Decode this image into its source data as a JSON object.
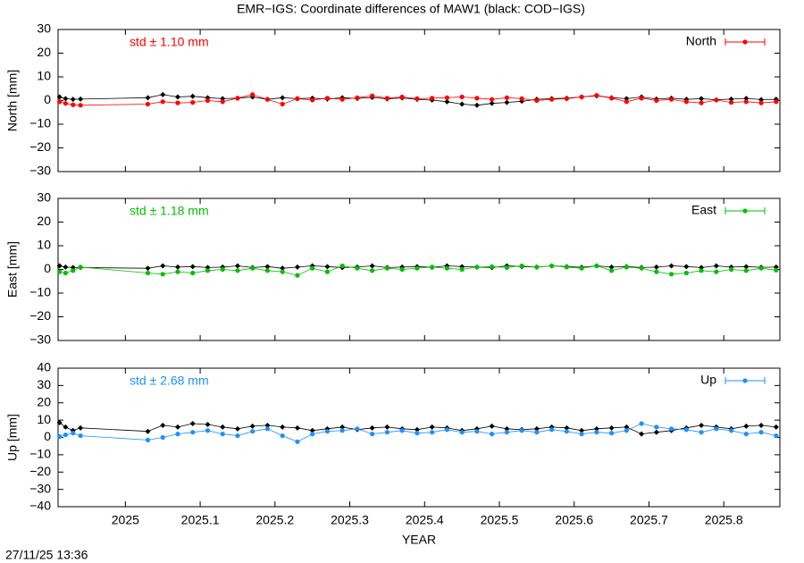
{
  "title": "EMR−IGS: Coordinate differences of MAW1 (black: COD−IGS)",
  "footer": "27/11/25 13:36",
  "chart_data": [
    {
      "type": "line",
      "ylabel": "North [mm]",
      "annotation": "std ± 1.10 mm",
      "x": [
        2024.912,
        2024.92,
        2024.93,
        2024.94,
        2025.03,
        2025.05,
        2025.07,
        2025.09,
        2025.11,
        2025.13,
        2025.15,
        2025.17,
        2025.19,
        2025.21,
        2025.23,
        2025.25,
        2025.27,
        2025.29,
        2025.31,
        2025.33,
        2025.35,
        2025.37,
        2025.39,
        2025.41,
        2025.43,
        2025.45,
        2025.47,
        2025.49,
        2025.51,
        2025.53,
        2025.55,
        2025.57,
        2025.59,
        2025.61,
        2025.63,
        2025.65,
        2025.67,
        2025.69,
        2025.71,
        2025.73,
        2025.75,
        2025.77,
        2025.79,
        2025.81,
        2025.83,
        2025.85,
        2025.87
      ],
      "xlim": [
        2024.91,
        2025.875
      ],
      "xticks": [
        2025,
        2025.1,
        2025.2,
        2025.3,
        2025.4,
        2025.5,
        2025.6,
        2025.7,
        2025.8
      ],
      "ylim": [
        -30,
        30
      ],
      "yticks": [
        {
          "value": -30,
          "label": "−30"
        },
        {
          "value": -20,
          "label": "−20"
        },
        {
          "value": -10,
          "label": "−10"
        },
        0,
        10,
        20,
        30
      ],
      "series": [
        {
          "color": "#000000",
          "values": [
            1.5,
            0.8,
            0.5,
            0.6,
            1.2,
            2.5,
            1.5,
            1.8,
            1.2,
            0.8,
            1.0,
            1.5,
            0.5,
            1.2,
            0.8,
            1.0,
            0.6,
            1.2,
            0.9,
            1.3,
            0.7,
            1.1,
            0.5,
            0.2,
            -0.5,
            -1.5,
            -2.0,
            -1.2,
            -0.8,
            -0.3,
            0.5,
            0.8,
            1.0,
            1.5,
            2.0,
            1.2,
            0.8,
            1.5,
            0.6,
            1.0,
            0.5,
            0.8,
            0.3,
            0.6,
            0.9,
            0.4,
            0.5
          ]
        },
        {
          "name": "North",
          "color": "#ff0000",
          "values": [
            -0.5,
            -1.2,
            -1.8,
            -2.0,
            -1.5,
            -0.5,
            -1.0,
            -0.8,
            0.0,
            -0.5,
            1.0,
            2.5,
            0.5,
            -1.5,
            0.8,
            0.2,
            1.0,
            0.5,
            1.2,
            2.0,
            1.0,
            1.5,
            0.8,
            1.0,
            1.2,
            1.5,
            1.0,
            0.5,
            1.2,
            0.8,
            0.0,
            0.5,
            0.8,
            1.5,
            2.2,
            1.0,
            -0.5,
            1.0,
            0.0,
            0.5,
            -0.5,
            -1.0,
            0.2,
            -0.8,
            -0.5,
            -1.0,
            -0.5
          ]
        }
      ]
    },
    {
      "type": "line",
      "ylabel": "East [mm]",
      "annotation": "std ± 1.18 mm",
      "x": [
        2024.912,
        2024.92,
        2024.93,
        2024.94,
        2025.03,
        2025.05,
        2025.07,
        2025.09,
        2025.11,
        2025.13,
        2025.15,
        2025.17,
        2025.19,
        2025.21,
        2025.23,
        2025.25,
        2025.27,
        2025.29,
        2025.31,
        2025.33,
        2025.35,
        2025.37,
        2025.39,
        2025.41,
        2025.43,
        2025.45,
        2025.47,
        2025.49,
        2025.51,
        2025.53,
        2025.55,
        2025.57,
        2025.59,
        2025.61,
        2025.63,
        2025.65,
        2025.67,
        2025.69,
        2025.71,
        2025.73,
        2025.75,
        2025.77,
        2025.79,
        2025.81,
        2025.83,
        2025.85,
        2025.87
      ],
      "xlim": [
        2024.91,
        2025.875
      ],
      "xticks": [
        2025,
        2025.1,
        2025.2,
        2025.3,
        2025.4,
        2025.5,
        2025.6,
        2025.7,
        2025.8
      ],
      "ylim": [
        -30,
        30
      ],
      "yticks": [
        {
          "value": -30,
          "label": "−30"
        },
        {
          "value": -20,
          "label": "−20"
        },
        {
          "value": -10,
          "label": "−10"
        },
        0,
        10,
        20,
        30
      ],
      "series": [
        {
          "color": "#000000",
          "values": [
            1.5,
            1.0,
            0.8,
            0.8,
            0.5,
            1.5,
            1.0,
            1.2,
            0.8,
            1.0,
            1.5,
            0.8,
            1.2,
            0.5,
            1.0,
            1.5,
            1.2,
            0.8,
            1.0,
            1.5,
            0.8,
            1.0,
            1.2,
            0.9,
            1.5,
            1.2,
            1.0,
            0.8,
            1.5,
            1.2,
            1.0,
            1.5,
            1.2,
            0.9,
            1.5,
            1.0,
            1.2,
            0.8,
            1.0,
            1.5,
            1.2,
            0.8,
            1.5,
            1.0,
            1.2,
            0.9,
            1.0
          ]
        },
        {
          "name": "East",
          "color": "#00c000",
          "values": [
            -1.0,
            -1.5,
            -0.5,
            1.0,
            -1.5,
            -2.0,
            -1.0,
            -1.5,
            -0.5,
            0.0,
            -0.5,
            0.5,
            -0.5,
            -1.0,
            -2.5,
            0.5,
            -1.0,
            1.5,
            0.5,
            -0.5,
            0.5,
            0.0,
            0.5,
            1.0,
            0.5,
            0.0,
            1.0,
            1.2,
            0.8,
            1.5,
            1.0,
            1.5,
            1.0,
            0.5,
            1.5,
            -0.5,
            1.0,
            0.5,
            -1.0,
            -2.0,
            -1.5,
            -0.5,
            -1.0,
            0.0,
            -0.5,
            0.5,
            -0.3
          ]
        }
      ]
    },
    {
      "type": "line",
      "ylabel": "Up [mm]",
      "annotation": "std ± 2.68 mm",
      "xlabel": "YEAR",
      "x": [
        2024.912,
        2024.92,
        2024.93,
        2024.94,
        2025.03,
        2025.05,
        2025.07,
        2025.09,
        2025.11,
        2025.13,
        2025.15,
        2025.17,
        2025.19,
        2025.21,
        2025.23,
        2025.25,
        2025.27,
        2025.29,
        2025.31,
        2025.33,
        2025.35,
        2025.37,
        2025.39,
        2025.41,
        2025.43,
        2025.45,
        2025.47,
        2025.49,
        2025.51,
        2025.53,
        2025.55,
        2025.57,
        2025.59,
        2025.61,
        2025.63,
        2025.65,
        2025.67,
        2025.69,
        2025.71,
        2025.73,
        2025.75,
        2025.77,
        2025.79,
        2025.81,
        2025.83,
        2025.85,
        2025.87
      ],
      "xlim": [
        2024.91,
        2025.875
      ],
      "xticks": [
        2025,
        2025.1,
        2025.2,
        2025.3,
        2025.4,
        2025.5,
        2025.6,
        2025.7,
        2025.8
      ],
      "ylim": [
        -40,
        40
      ],
      "yticks": [
        {
          "value": -40,
          "label": "−40"
        },
        {
          "value": -30,
          "label": "−30"
        },
        {
          "value": -20,
          "label": "−20"
        },
        {
          "value": -10,
          "label": "−10"
        },
        0,
        10,
        20,
        30,
        40
      ],
      "series": [
        {
          "color": "#000000",
          "values": [
            8.5,
            6.0,
            4.0,
            5.5,
            3.5,
            7.0,
            6.0,
            8.0,
            7.5,
            6.0,
            5.0,
            6.5,
            7.0,
            6.0,
            5.5,
            4.0,
            5.0,
            6.0,
            4.5,
            5.5,
            6.0,
            5.0,
            4.5,
            6.0,
            5.5,
            4.0,
            5.0,
            6.5,
            5.0,
            4.5,
            5.0,
            6.0,
            5.5,
            4.0,
            5.0,
            5.5,
            6.0,
            2.0,
            3.0,
            4.0,
            5.5,
            7.0,
            6.0,
            5.0,
            6.5,
            7.0,
            6.0
          ]
        },
        {
          "name": "Up",
          "color": "#1e90ff",
          "values": [
            0.5,
            1.5,
            2.5,
            1.0,
            -1.5,
            0.0,
            2.0,
            3.0,
            4.0,
            2.0,
            1.0,
            3.5,
            5.0,
            1.0,
            -2.5,
            2.0,
            3.5,
            4.0,
            5.0,
            2.0,
            3.0,
            4.0,
            2.5,
            3.0,
            4.5,
            3.0,
            3.5,
            2.0,
            3.0,
            4.0,
            3.0,
            4.5,
            3.5,
            2.0,
            3.0,
            2.5,
            4.0,
            8.0,
            6.0,
            5.0,
            4.5,
            3.0,
            5.0,
            4.0,
            2.0,
            3.0,
            1.0
          ]
        }
      ]
    }
  ]
}
